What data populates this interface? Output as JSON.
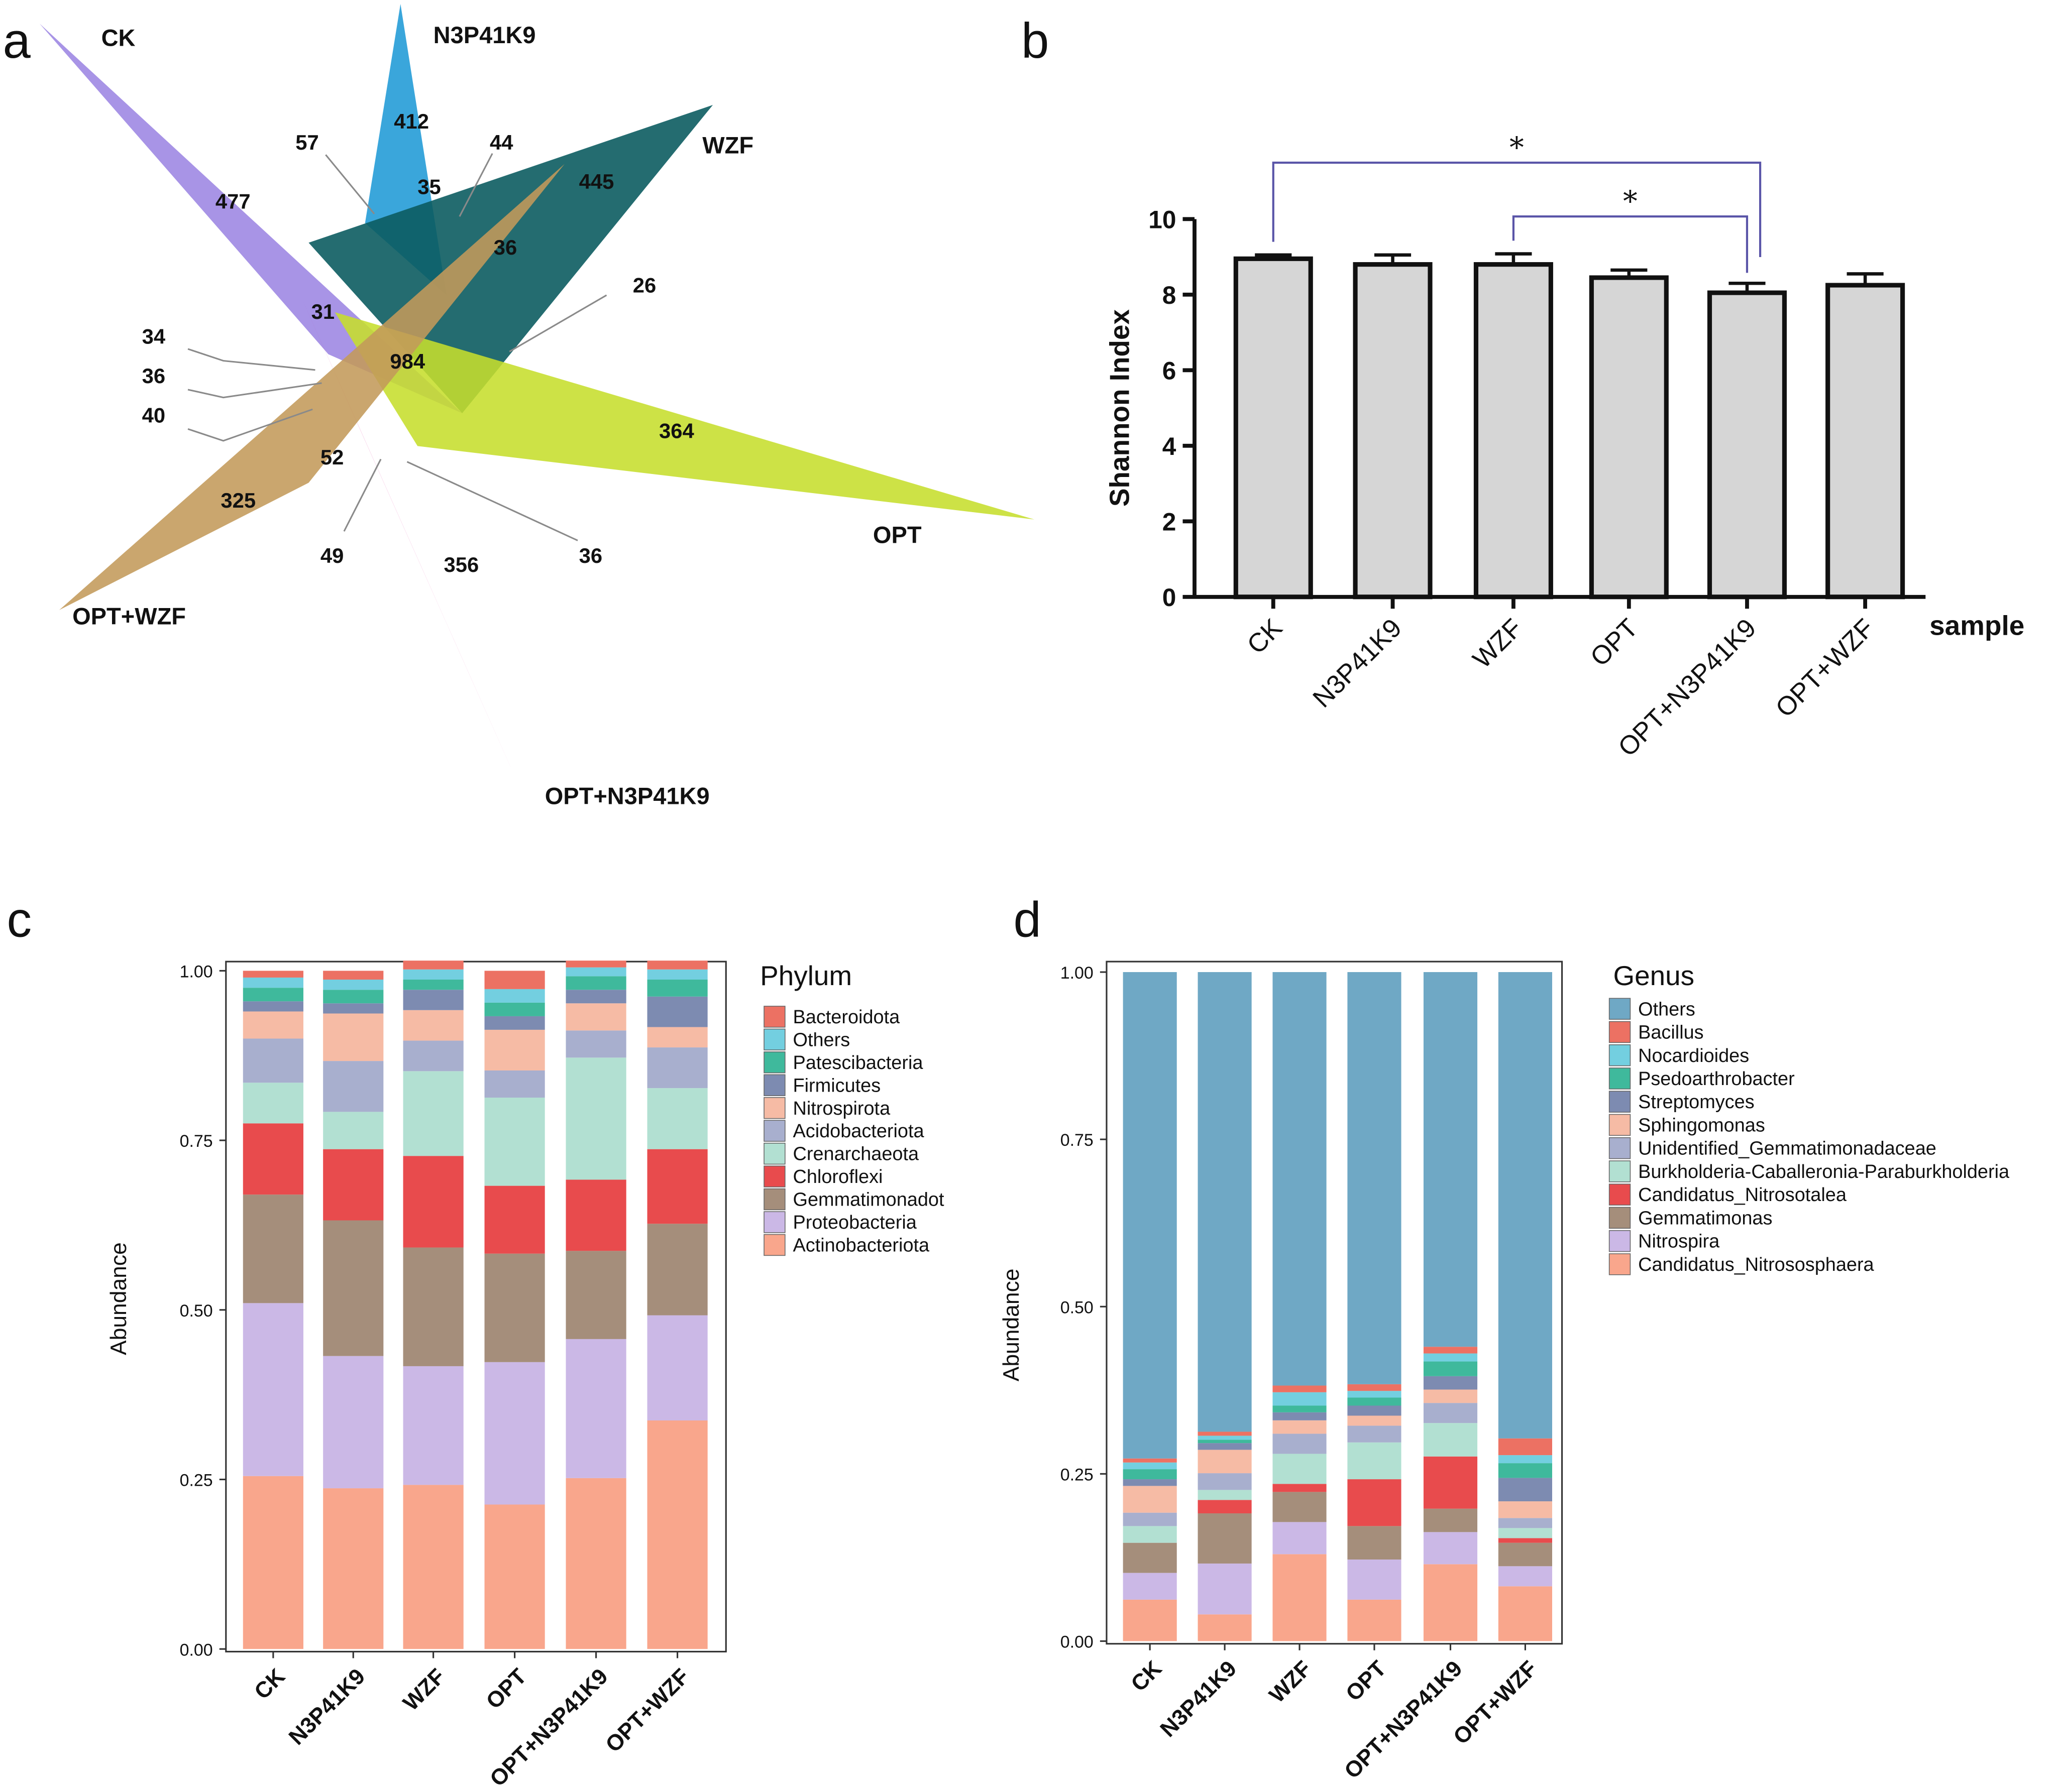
{
  "panel_labels": {
    "a": "a",
    "b": "b",
    "c": "c",
    "d": "d"
  },
  "colors": {
    "ck": "#9c85e2",
    "n3p41k9": "#1f9ad6",
    "wzf": "#0c5c60",
    "opt": "#c6de2c",
    "opt_n3p41k9": "#dd2c99",
    "opt_wzf": "#c39a5a",
    "bar_fill": "#d6d6d6",
    "bracket": "#5a55a8",
    "leader": "#8a8a8a"
  },
  "chart_data": [
    {
      "type": "venn",
      "title": "",
      "sets": [
        "CK",
        "N3P41K9",
        "WZF",
        "OPT",
        "OPT+N3P41K9",
        "OPT+WZF"
      ],
      "unique_counts": {
        "CK": 477,
        "N3P41K9": 412,
        "WZF": 445,
        "OPT": 364,
        "OPT+N3P41K9": 356,
        "OPT+WZF": 325
      },
      "core_count": 984,
      "overlap_counts": [
        "57",
        "35",
        "44",
        "36",
        "26",
        "31",
        "34",
        "36",
        "40",
        "52",
        "49",
        "36"
      ]
    },
    {
      "type": "bar",
      "title": "",
      "xlabel": "sample",
      "ylabel": "Shannon Index",
      "categories": [
        "CK",
        "N3P41K9",
        "WZF",
        "OPT",
        "OPT+N3P41K9",
        "OPT+WZF"
      ],
      "values": [
        8.95,
        8.8,
        8.8,
        8.45,
        8.05,
        8.25
      ],
      "errors": [
        0.1,
        0.25,
        0.28,
        0.2,
        0.25,
        0.3
      ],
      "ylim": [
        0,
        10
      ],
      "yticks": [
        "0",
        "2",
        "4",
        "6",
        "8",
        "10"
      ],
      "significance": [
        {
          "from": "CK",
          "to": "OPT+N3P41K9",
          "label": "*"
        },
        {
          "from": "WZF",
          "to": "OPT+N3P41K9",
          "label": "*"
        }
      ]
    },
    {
      "type": "stacked_bar",
      "title": "",
      "xlabel": "",
      "ylabel": "Abundance",
      "legend_title": "Phylum",
      "categories": [
        "CK",
        "N3P41K9",
        "WZF",
        "OPT",
        "OPT+N3P41K9",
        "OPT+WZF"
      ],
      "ylim": [
        0,
        1
      ],
      "yticks": [
        "0.00",
        "0.25",
        "0.50",
        "0.75",
        "1.00"
      ],
      "series": [
        {
          "name": "Actinobacteriota",
          "color": "#f9a68c",
          "values": [
            0.255,
            0.237,
            0.242,
            0.213,
            0.252,
            0.337
          ]
        },
        {
          "name": "Proteobacteria",
          "color": "#cbb8e6",
          "values": [
            0.255,
            0.195,
            0.175,
            0.21,
            0.205,
            0.155
          ]
        },
        {
          "name": "Gemmatimonadot",
          "color": "#a58e7b",
          "values": [
            0.16,
            0.2,
            0.175,
            0.16,
            0.13,
            0.135
          ]
        },
        {
          "name": "Chloroflexi",
          "color": "#e84b4d",
          "values": [
            0.105,
            0.105,
            0.135,
            0.1,
            0.105,
            0.11
          ]
        },
        {
          "name": "Crenarchaeota",
          "color": "#b2e0d2",
          "values": [
            0.06,
            0.055,
            0.125,
            0.13,
            0.18,
            0.09
          ]
        },
        {
          "name": "Acidobacteriota",
          "color": "#a8afce",
          "values": [
            0.065,
            0.075,
            0.045,
            0.04,
            0.04,
            0.06
          ]
        },
        {
          "name": "Nitrospirota",
          "color": "#f6bba5",
          "values": [
            0.04,
            0.07,
            0.045,
            0.06,
            0.04,
            0.03
          ]
        },
        {
          "name": "Firmicutes",
          "color": "#7d8bb1",
          "values": [
            0.015,
            0.015,
            0.03,
            0.02,
            0.02,
            0.045
          ]
        },
        {
          "name": "Patescibacteria",
          "color": "#3fb99c",
          "values": [
            0.02,
            0.02,
            0.015,
            0.02,
            0.02,
            0.025
          ]
        },
        {
          "name": "Others",
          "color": "#73cfe0",
          "values": [
            0.015,
            0.015,
            0.015,
            0.02,
            0.013,
            0.015
          ]
        },
        {
          "name": "Bacteroidota",
          "color": "#ec7163",
          "values": [
            0.01,
            0.013,
            0.013,
            0.027,
            0.01,
            0.013
          ]
        }
      ]
    },
    {
      "type": "stacked_bar",
      "title": "",
      "xlabel": "",
      "ylabel": "Abundance",
      "legend_title": "Genus",
      "categories": [
        "CK",
        "N3P41K9",
        "WZF",
        "OPT",
        "OPT+N3P41K9",
        "OPT+WZF"
      ],
      "ylim": [
        0,
        1
      ],
      "yticks": [
        "0.00",
        "0.25",
        "0.50",
        "0.75",
        "1.00"
      ],
      "series": [
        {
          "name": "Candidatus_Nitrososphaera",
          "color": "#f9a68c",
          "values": [
            0.062,
            0.04,
            0.13,
            0.062,
            0.115,
            0.082
          ]
        },
        {
          "name": "Nitrospira",
          "color": "#cbb8e6",
          "values": [
            0.04,
            0.076,
            0.048,
            0.06,
            0.048,
            0.03
          ]
        },
        {
          "name": "Gemmatimonas",
          "color": "#a58e7b",
          "values": [
            0.045,
            0.075,
            0.045,
            0.05,
            0.035,
            0.035
          ]
        },
        {
          "name": "Candidatus_Nitrosotalea",
          "color": "#e84b4d",
          "values": [
            0.0,
            0.02,
            0.012,
            0.07,
            0.078,
            0.007
          ]
        },
        {
          "name": "Burkholderia-Caballeronia-Paraburkholderia",
          "color": "#b2e0d2",
          "values": [
            0.025,
            0.015,
            0.045,
            0.055,
            0.05,
            0.015
          ]
        },
        {
          "name": "Unidentified_Gemmatimonadaceae",
          "color": "#a8afce",
          "values": [
            0.02,
            0.025,
            0.03,
            0.025,
            0.03,
            0.015
          ]
        },
        {
          "name": "Sphingomonas",
          "color": "#f6bba5",
          "values": [
            0.04,
            0.035,
            0.02,
            0.015,
            0.02,
            0.025
          ]
        },
        {
          "name": "Streptomyces",
          "color": "#7d8bb1",
          "values": [
            0.01,
            0.01,
            0.012,
            0.015,
            0.02,
            0.035
          ]
        },
        {
          "name": "Psedoarthrobacter",
          "color": "#3fb99c",
          "values": [
            0.015,
            0.005,
            0.01,
            0.012,
            0.022,
            0.022
          ]
        },
        {
          "name": "Nocardioides",
          "color": "#73cfe0",
          "values": [
            0.01,
            0.006,
            0.02,
            0.01,
            0.012,
            0.012
          ]
        },
        {
          "name": "Bacillus",
          "color": "#ec7163",
          "values": [
            0.006,
            0.006,
            0.01,
            0.01,
            0.01,
            0.025
          ]
        },
        {
          "name": "Others",
          "color": "#6fa8c5",
          "values": [
            0.727,
            0.687,
            0.618,
            0.616,
            0.56,
            0.697
          ]
        }
      ]
    }
  ]
}
